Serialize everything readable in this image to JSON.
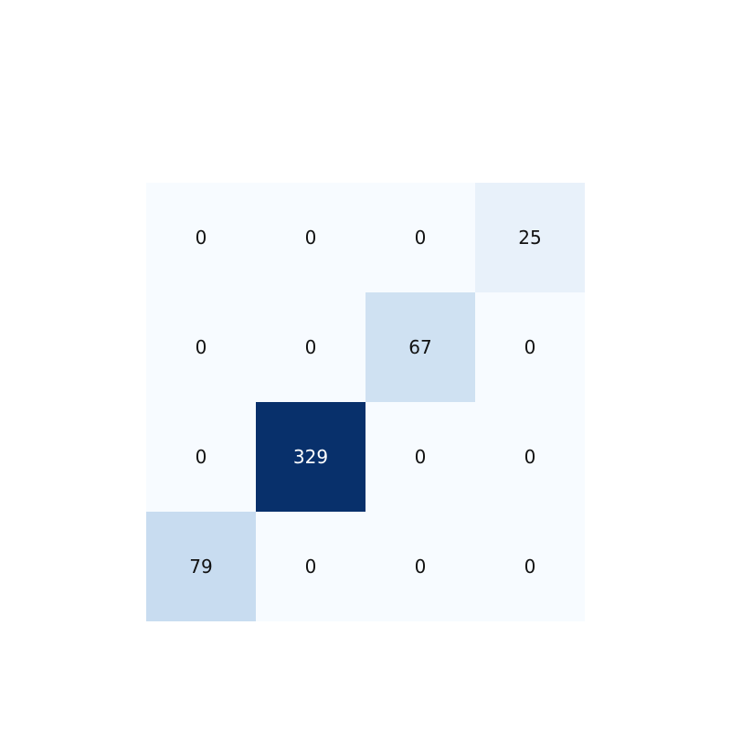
{
  "chart_data": {
    "type": "heatmap",
    "title": "",
    "xlabel": "",
    "ylabel": "",
    "rows": 4,
    "cols": 4,
    "values": [
      [
        0,
        0,
        0,
        25
      ],
      [
        0,
        0,
        67,
        0
      ],
      [
        0,
        329,
        0,
        0
      ],
      [
        79,
        0,
        0,
        0
      ]
    ],
    "cmap": "Blues",
    "vmin": 0,
    "vmax": 329,
    "colors": {
      "low": "#f7fbff",
      "high": "#08306b",
      "text_dark": "#111111",
      "text_light": "#ffffff"
    }
  }
}
